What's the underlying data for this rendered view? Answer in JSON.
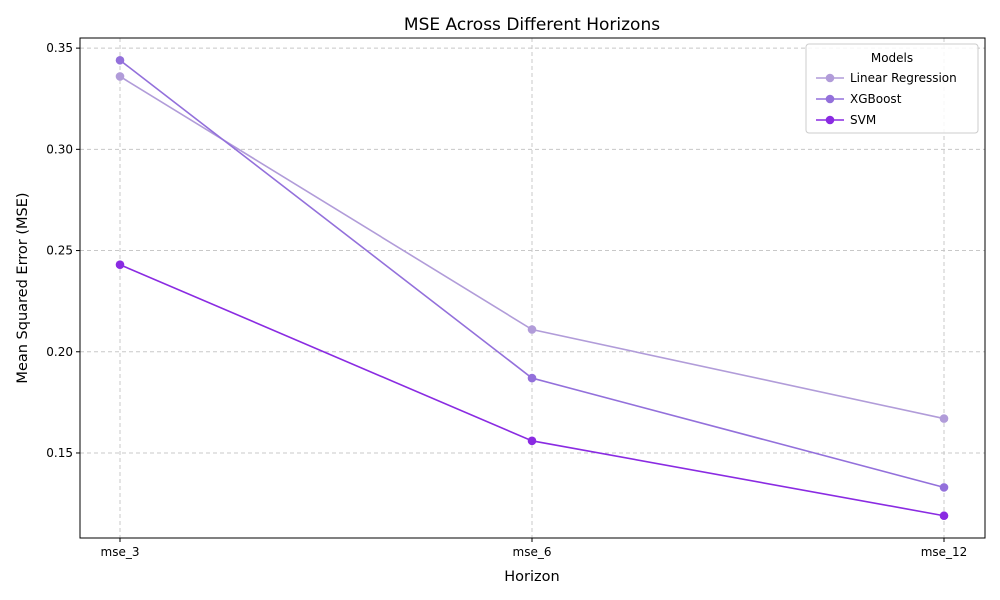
{
  "chart_data": {
    "type": "line",
    "title": "MSE Across Different Horizons",
    "xlabel": "Horizon",
    "ylabel": "Mean Squared Error (MSE)",
    "categories": [
      "mse_3",
      "mse_6",
      "mse_12"
    ],
    "ylim": [
      0.108,
      0.355
    ],
    "yticks": [
      0.15,
      0.2,
      0.25,
      0.3,
      0.35
    ],
    "ytick_labels": [
      "0.15",
      "0.20",
      "0.25",
      "0.30",
      "0.35"
    ],
    "grid": true,
    "legend": {
      "title": "Models",
      "placement": "top-right"
    },
    "series": [
      {
        "name": "Linear Regression",
        "color": "#b19cd9",
        "values": [
          0.336,
          0.211,
          0.167
        ]
      },
      {
        "name": "XGBoost",
        "color": "#9370db",
        "values": [
          0.344,
          0.187,
          0.133
        ]
      },
      {
        "name": "SVM",
        "color": "#8a2be2",
        "values": [
          0.243,
          0.156,
          0.119
        ]
      }
    ]
  }
}
